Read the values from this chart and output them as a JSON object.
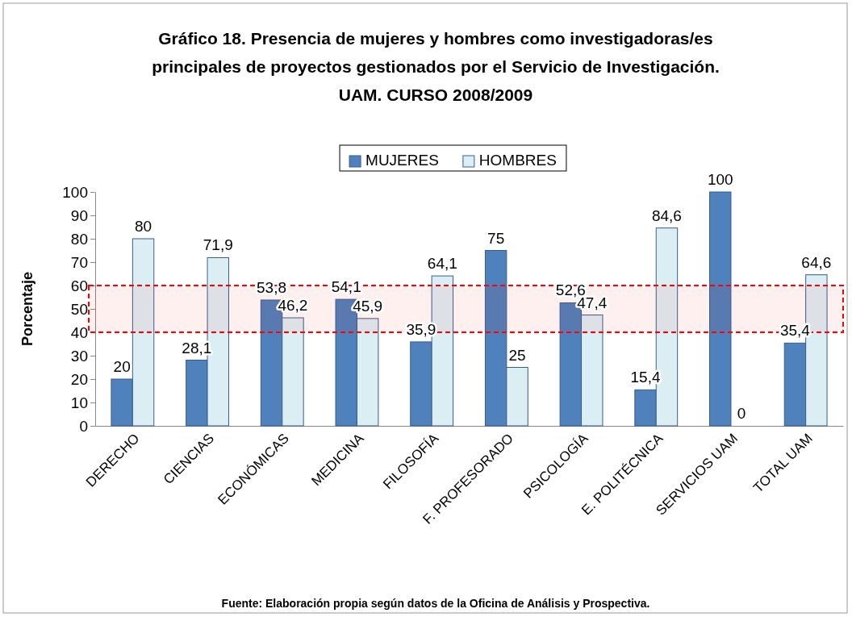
{
  "chart_data": {
    "type": "bar",
    "title": "Gráfico 18. Presencia de mujeres y hombres como investigadoras/es principales de proyectos gestionados por el Servicio de Investigación. UAM. CURSO 2008/2009",
    "ylabel": "Porcentaje",
    "categories": [
      "DERECHO",
      "CIENCIAS",
      "ECONÓMICAS",
      "MEDICINA",
      "FILOSOFÍA",
      "F. PROFESORADO",
      "PSICOLOGÍA",
      "E. POLITÉCNICA",
      "SERVICIOS UAM",
      "TOTAL UAM"
    ],
    "series": [
      {
        "name": "MUJERES",
        "color": "#4f81bd",
        "values": [
          20,
          28.1,
          53.8,
          54.1,
          35.9,
          75,
          52.6,
          15.4,
          100,
          35.4
        ],
        "value_labels": [
          "20",
          "28,1",
          "53,8",
          "54,1",
          "35,9",
          "75",
          "52,6",
          "15,4",
          "100",
          "35,4"
        ]
      },
      {
        "name": "HOMBRES",
        "color": "#dbeef4",
        "values": [
          80,
          71.9,
          46.2,
          45.9,
          64.1,
          25,
          47.4,
          84.6,
          0,
          64.6
        ],
        "value_labels": [
          "80",
          "71,9",
          "46,2",
          "45,9",
          "64,1",
          "25",
          "47,4",
          "84,6",
          "0",
          "64,6"
        ]
      }
    ],
    "ylim": [
      0,
      100
    ],
    "yticks": [
      0,
      10,
      20,
      30,
      40,
      50,
      60,
      70,
      80,
      90,
      100
    ],
    "grid": false,
    "legend": "top",
    "bands": [
      {
        "axis": "y",
        "from": 40,
        "to": 60,
        "color": "#ff0000"
      }
    ],
    "annotations": [
      "Fuente: Elaboración propia según datos de la Oficina de Análisis y Prospectiva."
    ]
  }
}
